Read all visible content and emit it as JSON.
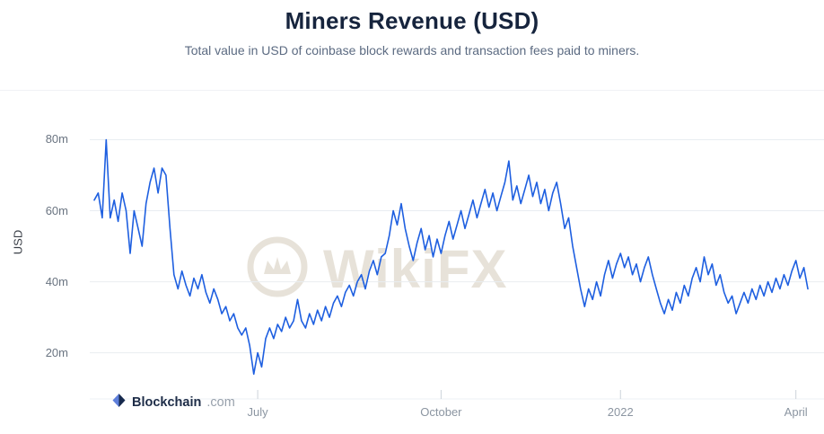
{
  "header": {
    "title": "Miners Revenue (USD)",
    "subtitle": "Total value in USD of coinbase block rewards and transaction fees paid to miners."
  },
  "watermark": {
    "text": "WikiFX"
  },
  "footer_brand": {
    "name": "Blockchain",
    "suffix": ".com"
  },
  "chart_data": {
    "type": "line",
    "title": "Miners Revenue (USD)",
    "subtitle": "Total value in USD of coinbase block rewards and transaction fees paid to miners.",
    "xlabel": "",
    "ylabel": "USD",
    "unit": "millions of USD",
    "grid": true,
    "legend": false,
    "line_color": "#1e5fe0",
    "ylim": [
      7,
      91
    ],
    "y_ticks": [
      {
        "value": 20,
        "label": "20m"
      },
      {
        "value": 40,
        "label": "40m"
      },
      {
        "value": 60,
        "label": "60m"
      },
      {
        "value": 80,
        "label": "80m"
      }
    ],
    "x_ticks": [
      {
        "label": "July",
        "index": 41
      },
      {
        "label": "October",
        "index": 87
      },
      {
        "label": "2022",
        "index": 132
      },
      {
        "label": "April",
        "index": 176
      }
    ],
    "values": [
      63,
      65,
      58,
      80,
      58,
      63,
      57,
      65,
      60,
      48,
      60,
      55,
      50,
      62,
      68,
      72,
      65,
      72,
      70,
      55,
      42,
      38,
      43,
      39,
      36,
      41,
      38,
      42,
      37,
      34,
      38,
      35,
      31,
      33,
      29,
      31,
      27,
      25,
      27,
      22,
      14,
      20,
      16,
      24,
      27,
      24,
      28,
      26,
      30,
      27,
      29,
      35,
      29,
      27,
      31,
      28,
      32,
      29,
      33,
      30,
      34,
      36,
      33,
      37,
      39,
      36,
      40,
      42,
      38,
      43,
      46,
      42,
      47,
      48,
      53,
      60,
      56,
      62,
      55,
      50,
      46,
      51,
      55,
      49,
      53,
      47,
      52,
      48,
      53,
      57,
      52,
      56,
      60,
      55,
      59,
      63,
      58,
      62,
      66,
      61,
      65,
      60,
      64,
      68,
      74,
      63,
      67,
      62,
      66,
      70,
      64,
      68,
      62,
      66,
      60,
      65,
      68,
      62,
      55,
      58,
      50,
      44,
      38,
      33,
      38,
      35,
      40,
      36,
      42,
      46,
      41,
      45,
      48,
      44,
      47,
      42,
      45,
      40,
      44,
      47,
      42,
      38,
      34,
      31,
      35,
      32,
      37,
      34,
      39,
      36,
      41,
      44,
      40,
      47,
      42,
      45,
      39,
      42,
      37,
      34,
      36,
      31,
      34,
      37,
      34,
      38,
      35,
      39,
      36,
      40,
      37,
      41,
      38,
      42,
      39,
      43,
      46,
      41,
      44,
      38
    ]
  }
}
